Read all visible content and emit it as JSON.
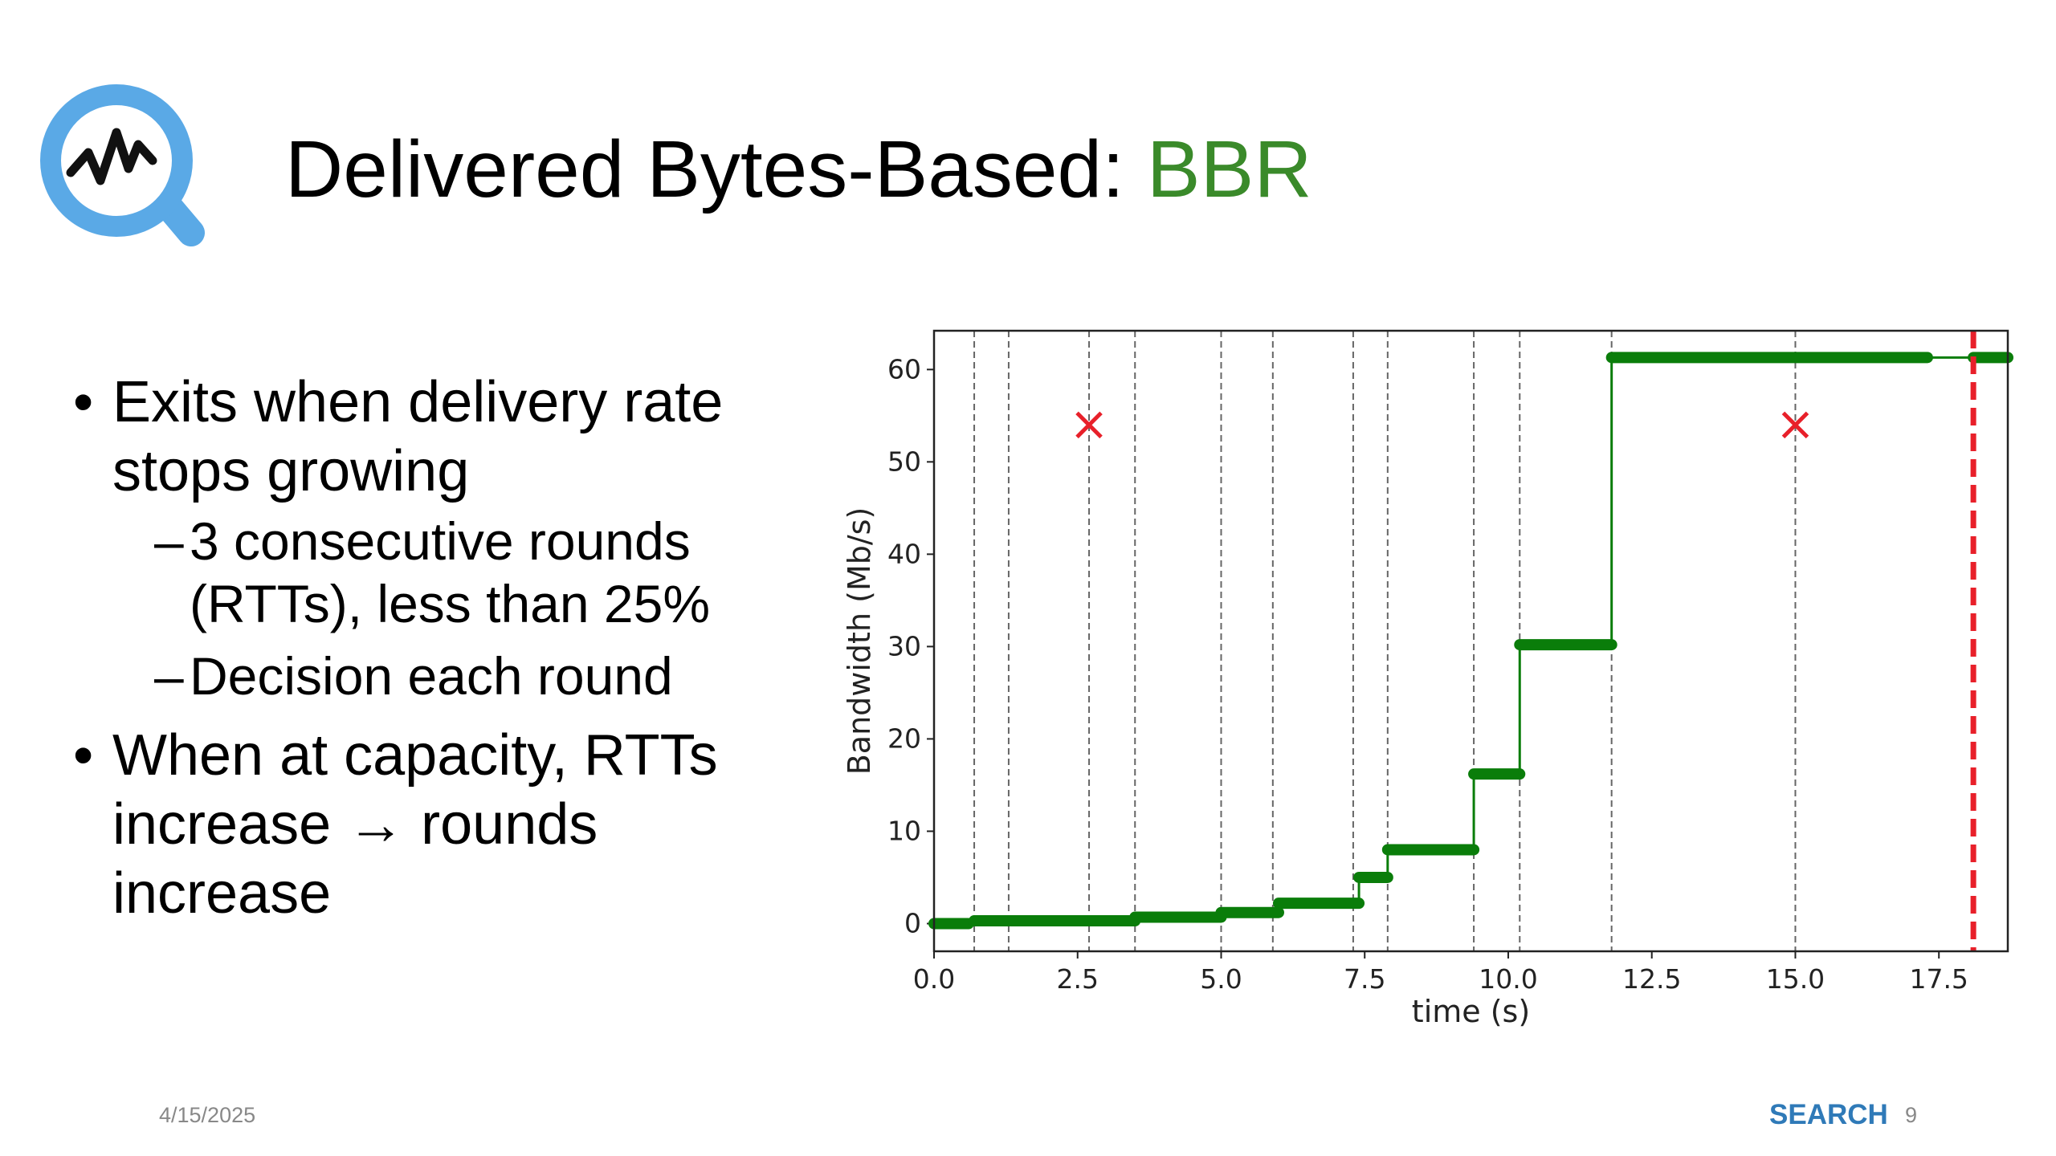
{
  "slide": {
    "title": "Delivered Bytes-Based:",
    "title_highlight": "BBR",
    "bullets": [
      {
        "lines": [
          "Exits when delivery rate",
          "stops growing"
        ],
        "sub": [
          {
            "lines": [
              "3 consecutive rounds",
              "(RTTs), less than 25%"
            ]
          },
          {
            "lines": [
              "Decision each round"
            ]
          }
        ]
      },
      {
        "lines": [
          "When at capacity, RTTs",
          "increase → rounds",
          "increase"
        ],
        "sub": []
      }
    ],
    "date": "4/15/2025",
    "brand": "SEARCH",
    "page_number": "9"
  },
  "chart_data": {
    "type": "step",
    "x_label": "time (s)",
    "y_label": "Bandwidth (Mb/s)",
    "color": "#0a7d0a",
    "steps": [
      {
        "x0": 0.0,
        "x1": 0.6,
        "y": 0
      },
      {
        "x0": 0.7,
        "x1": 3.5,
        "y": 0.3
      },
      {
        "x0": 3.5,
        "x1": 5.0,
        "y": 0.7
      },
      {
        "x0": 5.0,
        "x1": 6.0,
        "y": 1.2
      },
      {
        "x0": 6.0,
        "x1": 7.4,
        "y": 2.2
      },
      {
        "x0": 7.4,
        "x1": 7.9,
        "y": 5
      },
      {
        "x0": 7.9,
        "x1": 9.4,
        "y": 8
      },
      {
        "x0": 9.4,
        "x1": 10.2,
        "y": 16.2
      },
      {
        "x0": 10.2,
        "x1": 11.8,
        "y": 30.2
      },
      {
        "x0": 11.8,
        "x1": 17.3,
        "y": 61.3
      },
      {
        "x0": 18.1,
        "x1": 18.7,
        "y": 61.3
      }
    ],
    "round_lines": [
      0.7,
      1.3,
      2.7,
      3.5,
      5.0,
      5.9,
      7.3,
      7.9,
      9.4,
      10.2,
      11.8,
      15.0
    ],
    "markers": {
      "color": "#e8202a",
      "x": [
        2.7,
        15.0
      ],
      "y": [
        54,
        54
      ]
    },
    "exit_line": {
      "x": 18.1,
      "color": "#e8202a"
    },
    "xlim": [
      0,
      18.7
    ],
    "ylim": [
      -3,
      64.2
    ],
    "xticks": [
      {
        "value": 0,
        "label": "0.0"
      },
      2.5,
      {
        "value": 5,
        "label": "5.0"
      },
      7.5,
      {
        "value": 10,
        "label": "10.0"
      },
      12.5,
      {
        "value": 15,
        "label": "15.0"
      },
      17.5
    ],
    "yticks": [
      0,
      10,
      20,
      30,
      40,
      50,
      60
    ]
  }
}
